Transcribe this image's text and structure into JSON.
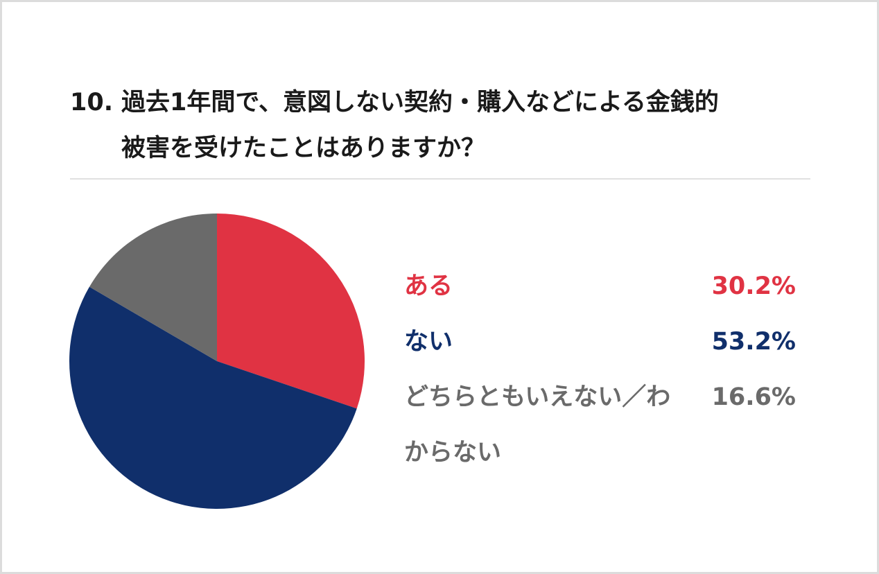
{
  "question": {
    "number": "10.",
    "line1": "過去1年間で、意図しない契約・購入などによる金銭的",
    "line2": "被害を受けたことはありますか？"
  },
  "colors": {
    "yes": "#e03343",
    "no": "#102f6b",
    "unsure": "#6a6a6a"
  },
  "legend": [
    {
      "label": "ある",
      "value": "30.2%",
      "color": "#e03343"
    },
    {
      "label": "ない",
      "value": "53.2%",
      "color": "#102f6b"
    },
    {
      "label": "どちらともいえない／わからない",
      "value": "16.6%",
      "color": "#6a6a6a"
    }
  ],
  "chart_data": {
    "type": "pie",
    "title": "10. 過去1年間で、意図しない契約・購入などによる金銭的被害を受けたことはありますか？",
    "categories": [
      "ある",
      "ない",
      "どちらともいえない／わからない"
    ],
    "values": [
      30.2,
      53.2,
      16.6
    ],
    "unit": "%",
    "colors": [
      "#e03343",
      "#102f6b",
      "#6a6a6a"
    ],
    "start_angle": "12 o'clock, clockwise",
    "legend_position": "right"
  }
}
